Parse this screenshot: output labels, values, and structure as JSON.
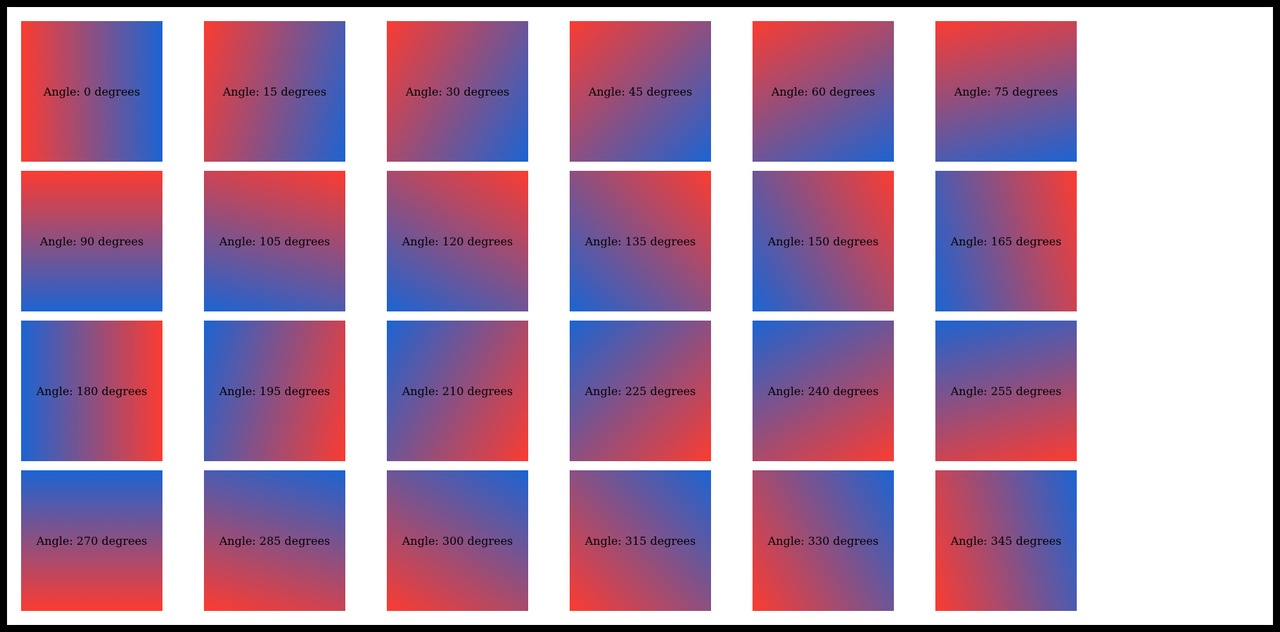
{
  "page": {
    "background_color": "#ffffff",
    "frame_color": "#000000",
    "text_color": "#000000"
  },
  "gradient": {
    "start_color": "#fb3c31",
    "end_color": "#1c64d2"
  },
  "tiles": [
    {
      "angle": 0,
      "label": "Angle: 0 degrees"
    },
    {
      "angle": 15,
      "label": "Angle: 15 degrees"
    },
    {
      "angle": 30,
      "label": "Angle: 30 degrees"
    },
    {
      "angle": 45,
      "label": "Angle: 45 degrees"
    },
    {
      "angle": 60,
      "label": "Angle: 60 degrees"
    },
    {
      "angle": 75,
      "label": "Angle: 75 degrees"
    },
    {
      "angle": 90,
      "label": "Angle: 90 degrees"
    },
    {
      "angle": 105,
      "label": "Angle: 105 degrees"
    },
    {
      "angle": 120,
      "label": "Angle: 120 degrees"
    },
    {
      "angle": 135,
      "label": "Angle: 135 degrees"
    },
    {
      "angle": 150,
      "label": "Angle: 150 degrees"
    },
    {
      "angle": 165,
      "label": "Angle: 165 degrees"
    },
    {
      "angle": 180,
      "label": "Angle: 180 degrees"
    },
    {
      "angle": 195,
      "label": "Angle: 195 degrees"
    },
    {
      "angle": 210,
      "label": "Angle: 210 degrees"
    },
    {
      "angle": 225,
      "label": "Angle: 225 degrees"
    },
    {
      "angle": 240,
      "label": "Angle: 240 degrees"
    },
    {
      "angle": 255,
      "label": "Angle: 255 degrees"
    },
    {
      "angle": 270,
      "label": "Angle: 270 degrees"
    },
    {
      "angle": 285,
      "label": "Angle: 285 degrees"
    },
    {
      "angle": 300,
      "label": "Angle: 300 degrees"
    },
    {
      "angle": 315,
      "label": "Angle: 315 degrees"
    },
    {
      "angle": 330,
      "label": "Angle: 330 degrees"
    },
    {
      "angle": 345,
      "label": "Angle: 345 degrees"
    }
  ]
}
